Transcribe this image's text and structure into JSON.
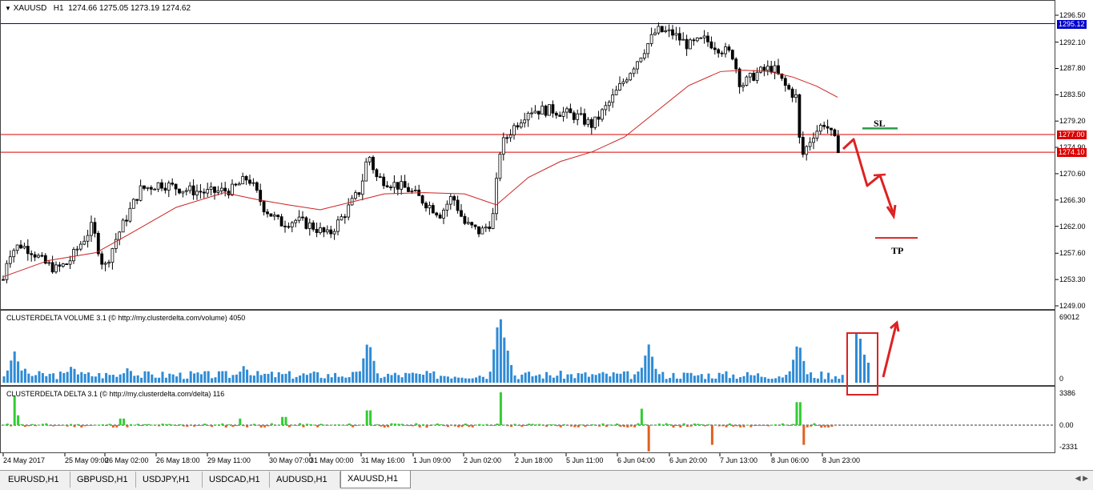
{
  "main": {
    "symbol": "XAUUSD",
    "timeframe": "H1",
    "ohlc": "1274.66 1275.05 1273.19 1274.62",
    "price_levels": [
      "1296.50",
      "1292.10",
      "1287.80",
      "1283.50",
      "1279.20",
      "1274.90",
      "1270.60",
      "1266.30",
      "1262.00",
      "1257.60",
      "1253.30",
      "1249.00"
    ],
    "tags": [
      {
        "label": "1295.12",
        "color": "#0000cc",
        "value": 1295.12
      },
      {
        "label": "1277.00",
        "color": "#dd0000",
        "value": 1277.0
      },
      {
        "label": "1274.10",
        "color": "#dd0000",
        "value": 1274.1
      }
    ],
    "sl_label": "SL",
    "tp_label": "TP",
    "colors": {
      "sl": "#2a9a4a",
      "tp": "#dd2222",
      "ma": "#cc2222",
      "candle": "#000000",
      "h_blue": "#0000cc",
      "h_red": "#dd0000"
    }
  },
  "volume": {
    "title": "CLUSTERDELTA VOLUME 3.1 (© http://my.clusterdelta.com/volume) 4050",
    "max_label": "69012",
    "zero_label": "0",
    "color": "#2e8bd6"
  },
  "delta": {
    "title": "CLUSTERDELTA DELTA 3.1 (© http://my.clusterdelta.com/delta) 116",
    "max_label": "3386",
    "zero_label": "0.00",
    "min_label": "-2331",
    "pos_color": "#33cc33",
    "neg_color": "#e06020"
  },
  "time_axis": [
    "24 May 2017",
    "25 May 09:00",
    "26 May 02:00",
    "26 May 18:00",
    "29 May 11:00",
    "30 May 07:00",
    "31 May 00:00",
    "31 May 16:00",
    "1 Jun 09:00",
    "2 Jun 02:00",
    "2 Jun 18:00",
    "5 Jun 11:00",
    "6 Jun 04:00",
    "6 Jun 20:00",
    "7 Jun 13:00",
    "8 Jun 06:00",
    "8 Jun 23:00"
  ],
  "tabs": [
    "EURUSD,H1",
    "GBPUSD,H1",
    "USDJPY,H1",
    "USDCAD,H1",
    "AUDUSD,H1",
    "XAUUSD,H1"
  ],
  "active_tab": "XAUUSD,H1",
  "chart_data": {
    "type": "candlestick",
    "symbol": "XAUUSD",
    "timeframe": "H1",
    "ylim": [
      1249.0,
      1297.5
    ],
    "anchors": [
      [
        0,
        1250.5
      ],
      [
        5,
        1254
      ],
      [
        10,
        1257.5
      ],
      [
        25,
        1259
      ],
      [
        40,
        1258
      ],
      [
        55,
        1256
      ],
      [
        70,
        1255
      ],
      [
        85,
        1256
      ],
      [
        100,
        1259
      ],
      [
        115,
        1262
      ],
      [
        130,
        1255
      ],
      [
        145,
        1260
      ],
      [
        160,
        1264
      ],
      [
        175,
        1268
      ],
      [
        200,
        1269
      ],
      [
        230,
        1268
      ],
      [
        260,
        1267.5
      ],
      [
        290,
        1268
      ],
      [
        310,
        1270
      ],
      [
        330,
        1265
      ],
      [
        350,
        1262.5
      ],
      [
        370,
        1263
      ],
      [
        390,
        1262
      ],
      [
        410,
        1260.5
      ],
      [
        430,
        1264
      ],
      [
        450,
        1268
      ],
      [
        460,
        1274
      ],
      [
        470,
        1270
      ],
      [
        490,
        1269
      ],
      [
        510,
        1268
      ],
      [
        530,
        1266
      ],
      [
        550,
        1264
      ],
      [
        565,
        1267
      ],
      [
        580,
        1262.5
      ],
      [
        600,
        1261
      ],
      [
        615,
        1263
      ],
      [
        625,
        1275
      ],
      [
        640,
        1278
      ],
      [
        660,
        1281
      ],
      [
        690,
        1281
      ],
      [
        720,
        1280
      ],
      [
        740,
        1278.5
      ],
      [
        760,
        1282
      ],
      [
        775,
        1285
      ],
      [
        790,
        1288
      ],
      [
        805,
        1291
      ],
      [
        820,
        1294
      ],
      [
        840,
        1293.5
      ],
      [
        860,
        1291.5
      ],
      [
        880,
        1292.5
      ],
      [
        900,
        1291
      ],
      [
        915,
        1290
      ],
      [
        925,
        1285
      ],
      [
        945,
        1287
      ],
      [
        965,
        1288
      ],
      [
        980,
        1285
      ],
      [
        995,
        1283
      ],
      [
        1000,
        1273
      ],
      [
        1015,
        1277
      ],
      [
        1030,
        1279
      ],
      [
        1040,
        1276.5
      ],
      [
        1048,
        1274.62
      ]
    ],
    "moving_average": [
      [
        5,
        1253.8
      ],
      [
        60,
        1256.4
      ],
      [
        120,
        1257.7
      ],
      [
        160,
        1260.6
      ],
      [
        220,
        1265.1
      ],
      [
        280,
        1267.5
      ],
      [
        320,
        1266.4
      ],
      [
        360,
        1265.5
      ],
      [
        400,
        1264.7
      ],
      [
        440,
        1266
      ],
      [
        480,
        1267.3
      ],
      [
        530,
        1267.5
      ],
      [
        580,
        1267.3
      ],
      [
        620,
        1265.5
      ],
      [
        660,
        1270
      ],
      [
        700,
        1272.6
      ],
      [
        740,
        1274.2
      ],
      [
        780,
        1276.6
      ],
      [
        820,
        1280.8
      ],
      [
        860,
        1285
      ],
      [
        900,
        1287.3
      ],
      [
        930,
        1287.5
      ],
      [
        960,
        1287.3
      ],
      [
        990,
        1286.4
      ],
      [
        1020,
        1284.9
      ],
      [
        1046,
        1283.1
      ]
    ],
    "horizontal_lines": [
      1295.12,
      1277.0,
      1274.1
    ],
    "sl_level": 1278.0,
    "tp_level": 1260.1,
    "volume_spikes": [
      [
        18,
        45
      ],
      [
        30,
        22
      ],
      [
        90,
        25
      ],
      [
        160,
        22
      ],
      [
        305,
        25
      ],
      [
        460,
        62
      ],
      [
        624,
        100
      ],
      [
        630,
        65
      ],
      [
        810,
        55
      ],
      [
        997,
        60
      ],
      [
        1070,
        69
      ],
      [
        1075,
        45
      ],
      [
        1080,
        30
      ]
    ],
    "delta_spikes": [
      [
        18,
        90
      ],
      [
        24,
        30
      ],
      [
        152,
        20
      ],
      [
        300,
        20
      ],
      [
        355,
        25
      ],
      [
        460,
        45
      ],
      [
        624,
        100
      ],
      [
        800,
        50
      ],
      [
        997,
        70
      ],
      [
        1003,
        -60
      ],
      [
        810,
        -80
      ],
      [
        890,
        -60
      ]
    ]
  }
}
